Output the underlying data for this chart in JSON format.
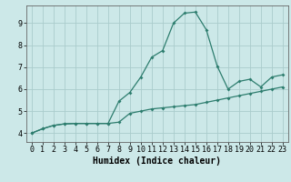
{
  "xlabel": "Humidex (Indice chaleur)",
  "bg_color": "#cce8e8",
  "grid_color": "#aacccc",
  "line_color": "#2d7d6e",
  "xlim": [
    -0.5,
    23.5
  ],
  "ylim": [
    3.6,
    9.8
  ],
  "xticks": [
    0,
    1,
    2,
    3,
    4,
    5,
    6,
    7,
    8,
    9,
    10,
    11,
    12,
    13,
    14,
    15,
    16,
    17,
    18,
    19,
    20,
    21,
    22,
    23
  ],
  "yticks": [
    4,
    5,
    6,
    7,
    8,
    9
  ],
  "line1_x": [
    0,
    1,
    2,
    3,
    4,
    5,
    6,
    7,
    8,
    9,
    10,
    11,
    12,
    13,
    14,
    15,
    16,
    17,
    18,
    19,
    20,
    21,
    22,
    23
  ],
  "line1_y": [
    4.0,
    4.2,
    4.35,
    4.42,
    4.44,
    4.44,
    4.44,
    4.44,
    4.5,
    4.9,
    5.0,
    5.1,
    5.15,
    5.2,
    5.25,
    5.3,
    5.4,
    5.5,
    5.6,
    5.7,
    5.8,
    5.9,
    6.0,
    6.1
  ],
  "line2_x": [
    0,
    1,
    2,
    3,
    4,
    5,
    6,
    7,
    8,
    9,
    10,
    11,
    12,
    13,
    14,
    15,
    16,
    17,
    18,
    19,
    20,
    21,
    22,
    23
  ],
  "line2_y": [
    4.0,
    4.2,
    4.35,
    4.42,
    4.44,
    4.44,
    4.44,
    4.44,
    5.45,
    5.85,
    6.55,
    7.45,
    7.75,
    9.0,
    9.45,
    9.5,
    8.7,
    7.05,
    6.0,
    6.35,
    6.45,
    6.1,
    6.55,
    6.65
  ],
  "xlabel_fontsize": 7,
  "tick_fontsize": 6,
  "marker_size": 2.0,
  "line_width": 0.9
}
